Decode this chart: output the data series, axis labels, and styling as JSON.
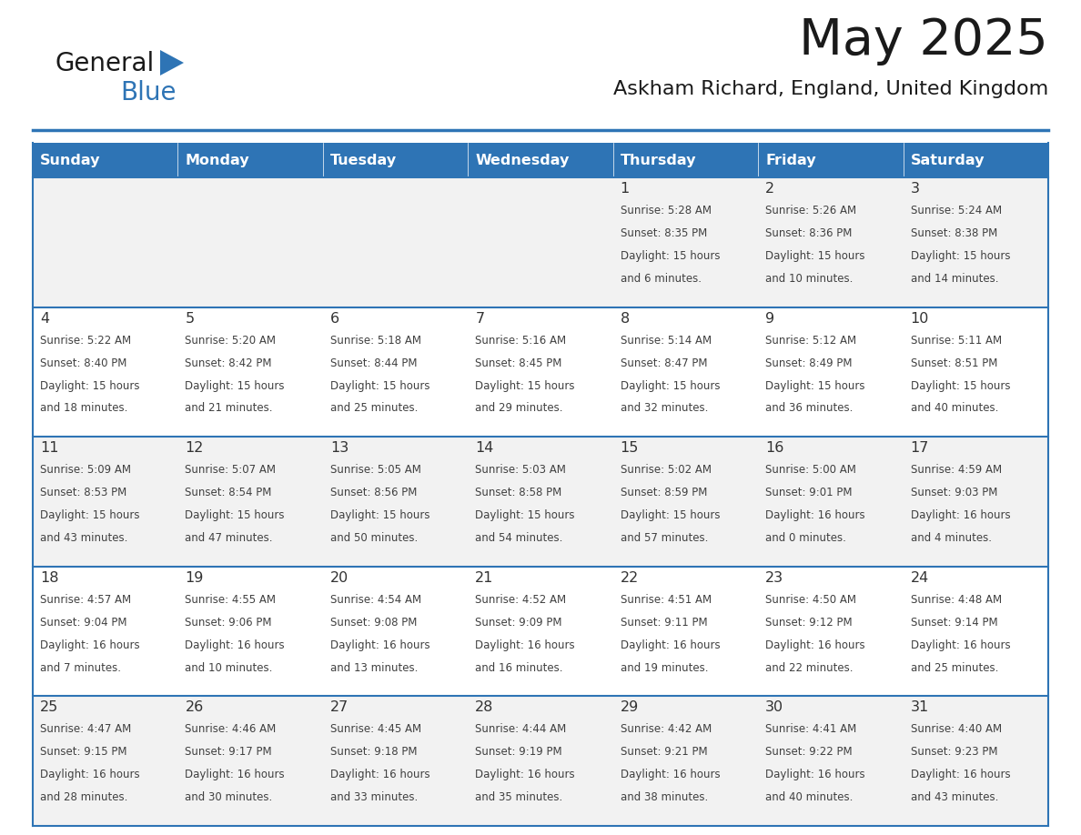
{
  "title": "May 2025",
  "subtitle": "Askham Richard, England, United Kingdom",
  "days_of_week": [
    "Sunday",
    "Monday",
    "Tuesday",
    "Wednesday",
    "Thursday",
    "Friday",
    "Saturday"
  ],
  "header_bg": "#2e74b5",
  "header_text": "#ffffff",
  "row_bg_even": "#f2f2f2",
  "row_bg_odd": "#ffffff",
  "border_color": "#2e74b5",
  "text_color": "#404040",
  "day_number_color": "#333333",
  "separator_color": "#2e74b5",
  "calendar": [
    [
      null,
      null,
      null,
      null,
      {
        "day": 1,
        "sunrise": "5:28 AM",
        "sunset": "8:35 PM",
        "daylight": "15 hours and 6 minutes."
      },
      {
        "day": 2,
        "sunrise": "5:26 AM",
        "sunset": "8:36 PM",
        "daylight": "15 hours and 10 minutes."
      },
      {
        "day": 3,
        "sunrise": "5:24 AM",
        "sunset": "8:38 PM",
        "daylight": "15 hours and 14 minutes."
      }
    ],
    [
      {
        "day": 4,
        "sunrise": "5:22 AM",
        "sunset": "8:40 PM",
        "daylight": "15 hours and 18 minutes."
      },
      {
        "day": 5,
        "sunrise": "5:20 AM",
        "sunset": "8:42 PM",
        "daylight": "15 hours and 21 minutes."
      },
      {
        "day": 6,
        "sunrise": "5:18 AM",
        "sunset": "8:44 PM",
        "daylight": "15 hours and 25 minutes."
      },
      {
        "day": 7,
        "sunrise": "5:16 AM",
        "sunset": "8:45 PM",
        "daylight": "15 hours and 29 minutes."
      },
      {
        "day": 8,
        "sunrise": "5:14 AM",
        "sunset": "8:47 PM",
        "daylight": "15 hours and 32 minutes."
      },
      {
        "day": 9,
        "sunrise": "5:12 AM",
        "sunset": "8:49 PM",
        "daylight": "15 hours and 36 minutes."
      },
      {
        "day": 10,
        "sunrise": "5:11 AM",
        "sunset": "8:51 PM",
        "daylight": "15 hours and 40 minutes."
      }
    ],
    [
      {
        "day": 11,
        "sunrise": "5:09 AM",
        "sunset": "8:53 PM",
        "daylight": "15 hours and 43 minutes."
      },
      {
        "day": 12,
        "sunrise": "5:07 AM",
        "sunset": "8:54 PM",
        "daylight": "15 hours and 47 minutes."
      },
      {
        "day": 13,
        "sunrise": "5:05 AM",
        "sunset": "8:56 PM",
        "daylight": "15 hours and 50 minutes."
      },
      {
        "day": 14,
        "sunrise": "5:03 AM",
        "sunset": "8:58 PM",
        "daylight": "15 hours and 54 minutes."
      },
      {
        "day": 15,
        "sunrise": "5:02 AM",
        "sunset": "8:59 PM",
        "daylight": "15 hours and 57 minutes."
      },
      {
        "day": 16,
        "sunrise": "5:00 AM",
        "sunset": "9:01 PM",
        "daylight": "16 hours and 0 minutes."
      },
      {
        "day": 17,
        "sunrise": "4:59 AM",
        "sunset": "9:03 PM",
        "daylight": "16 hours and 4 minutes."
      }
    ],
    [
      {
        "day": 18,
        "sunrise": "4:57 AM",
        "sunset": "9:04 PM",
        "daylight": "16 hours and 7 minutes."
      },
      {
        "day": 19,
        "sunrise": "4:55 AM",
        "sunset": "9:06 PM",
        "daylight": "16 hours and 10 minutes."
      },
      {
        "day": 20,
        "sunrise": "4:54 AM",
        "sunset": "9:08 PM",
        "daylight": "16 hours and 13 minutes."
      },
      {
        "day": 21,
        "sunrise": "4:52 AM",
        "sunset": "9:09 PM",
        "daylight": "16 hours and 16 minutes."
      },
      {
        "day": 22,
        "sunrise": "4:51 AM",
        "sunset": "9:11 PM",
        "daylight": "16 hours and 19 minutes."
      },
      {
        "day": 23,
        "sunrise": "4:50 AM",
        "sunset": "9:12 PM",
        "daylight": "16 hours and 22 minutes."
      },
      {
        "day": 24,
        "sunrise": "4:48 AM",
        "sunset": "9:14 PM",
        "daylight": "16 hours and 25 minutes."
      }
    ],
    [
      {
        "day": 25,
        "sunrise": "4:47 AM",
        "sunset": "9:15 PM",
        "daylight": "16 hours and 28 minutes."
      },
      {
        "day": 26,
        "sunrise": "4:46 AM",
        "sunset": "9:17 PM",
        "daylight": "16 hours and 30 minutes."
      },
      {
        "day": 27,
        "sunrise": "4:45 AM",
        "sunset": "9:18 PM",
        "daylight": "16 hours and 33 minutes."
      },
      {
        "day": 28,
        "sunrise": "4:44 AM",
        "sunset": "9:19 PM",
        "daylight": "16 hours and 35 minutes."
      },
      {
        "day": 29,
        "sunrise": "4:42 AM",
        "sunset": "9:21 PM",
        "daylight": "16 hours and 38 minutes."
      },
      {
        "day": 30,
        "sunrise": "4:41 AM",
        "sunset": "9:22 PM",
        "daylight": "16 hours and 40 minutes."
      },
      {
        "day": 31,
        "sunrise": "4:40 AM",
        "sunset": "9:23 PM",
        "daylight": "16 hours and 43 minutes."
      }
    ]
  ],
  "logo_color_general": "#1a1a1a",
  "logo_color_blue": "#2e74b5",
  "logo_triangle_color": "#2e74b5",
  "fig_width": 11.88,
  "fig_height": 9.18,
  "dpi": 100
}
